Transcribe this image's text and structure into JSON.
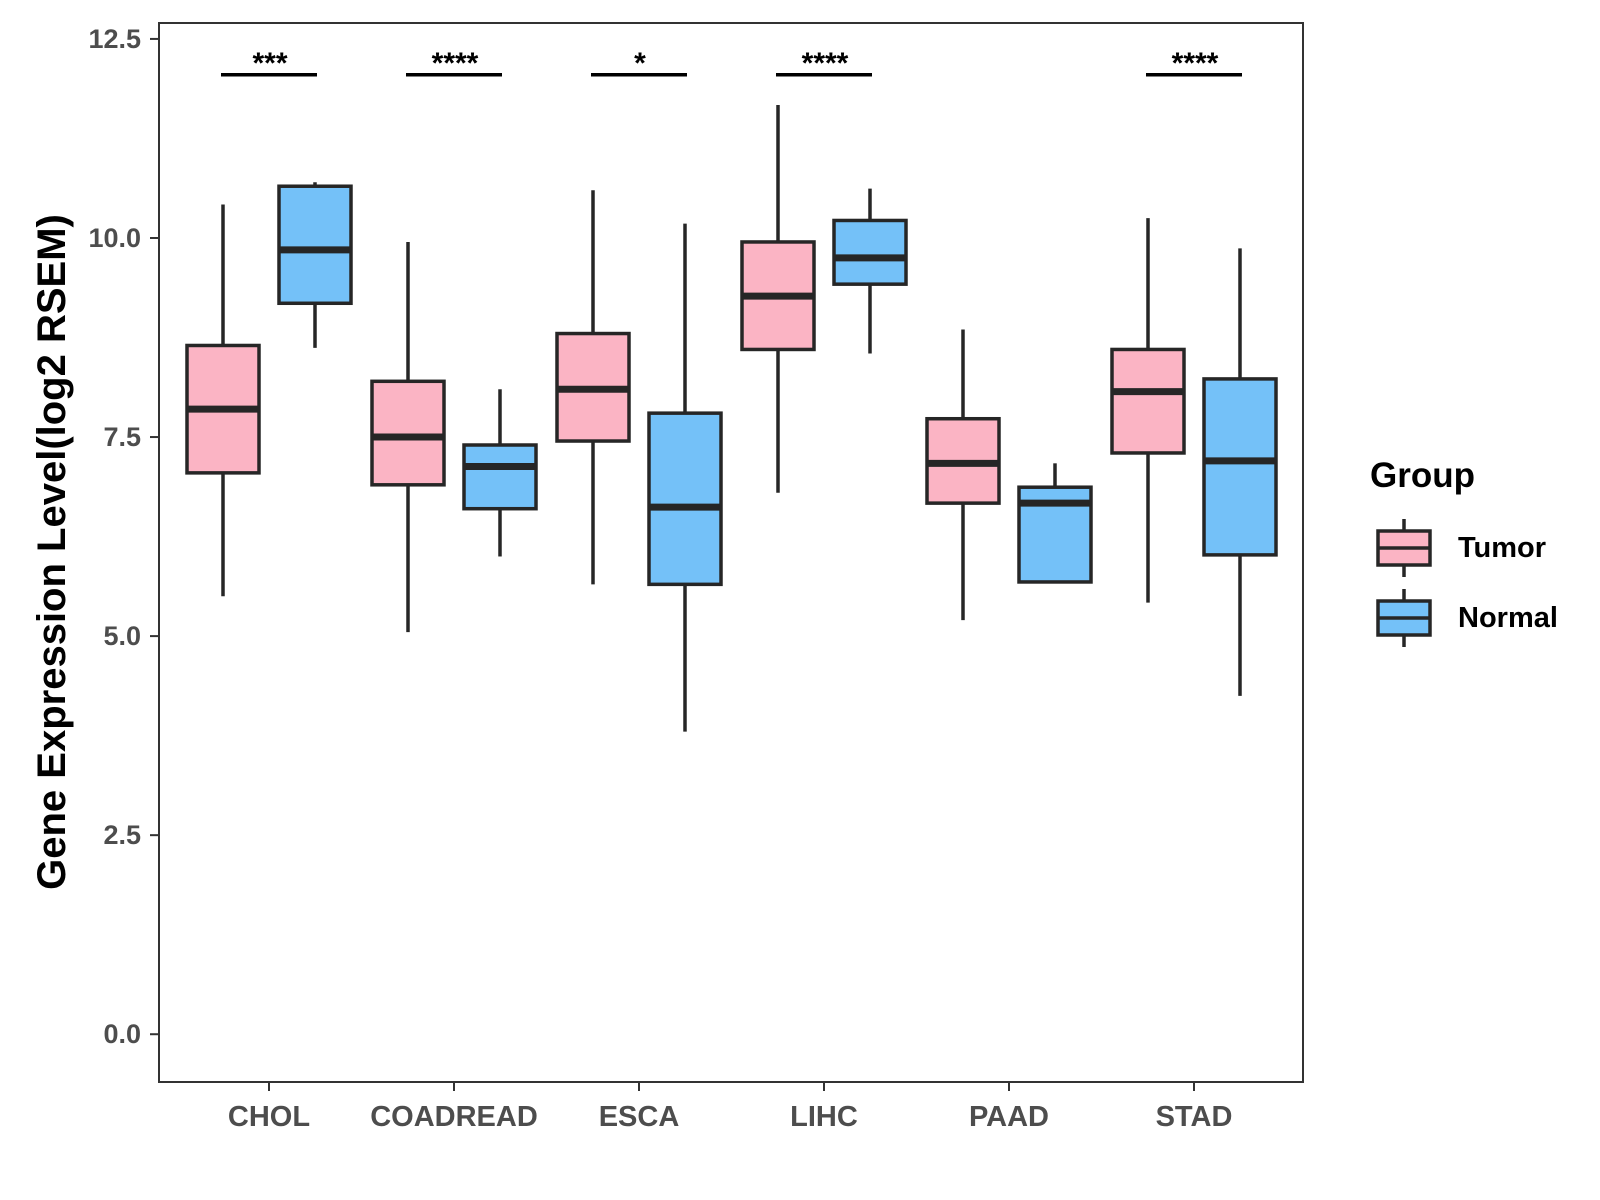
{
  "chart_data": {
    "type": "boxplot",
    "title": "",
    "xlabel": "",
    "ylabel": "Gene Expression Level(log2 RSEM)",
    "ylim": [
      -0.6,
      12.7
    ],
    "yticks": [
      "0.0",
      "2.5",
      "5.0",
      "7.5",
      "10.0",
      "12.5"
    ],
    "categories": [
      "CHOL",
      "COADREAD",
      "ESCA",
      "LIHC",
      "PAAD",
      "STAD"
    ],
    "legend": {
      "title": "Group",
      "position": "right",
      "entries": [
        "Tumor",
        "Normal"
      ]
    },
    "colors": {
      "Tumor": "#FBB4C4",
      "Normal": "#74C1F8",
      "outline": "#262626"
    },
    "series": [
      {
        "name": "Tumor",
        "boxes": [
          {
            "min": 5.5,
            "q1": 7.05,
            "median": 7.85,
            "q3": 8.65,
            "max": 10.42
          },
          {
            "min": 5.05,
            "q1": 6.9,
            "median": 7.5,
            "q3": 8.2,
            "max": 9.95
          },
          {
            "min": 5.65,
            "q1": 7.45,
            "median": 8.1,
            "q3": 8.8,
            "max": 10.6
          },
          {
            "min": 6.8,
            "q1": 8.6,
            "median": 9.27,
            "q3": 9.95,
            "max": 11.67
          },
          {
            "min": 5.2,
            "q1": 6.67,
            "median": 7.17,
            "q3": 7.73,
            "max": 8.85
          },
          {
            "min": 5.42,
            "q1": 7.3,
            "median": 8.07,
            "q3": 8.6,
            "max": 10.25
          }
        ]
      },
      {
        "name": "Normal",
        "boxes": [
          {
            "min": 8.62,
            "q1": 9.18,
            "median": 9.85,
            "q3": 10.65,
            "max": 10.7
          },
          {
            "min": 6.0,
            "q1": 6.6,
            "median": 7.13,
            "q3": 7.4,
            "max": 8.1
          },
          {
            "min": 3.8,
            "q1": 5.65,
            "median": 6.62,
            "q3": 7.8,
            "max": 10.18
          },
          {
            "min": 8.55,
            "q1": 9.42,
            "median": 9.75,
            "q3": 10.22,
            "max": 10.62
          },
          {
            "min": 5.68,
            "q1": 5.68,
            "median": 6.67,
            "q3": 6.87,
            "max": 7.17
          },
          {
            "min": 4.25,
            "q1": 6.02,
            "median": 7.2,
            "q3": 8.23,
            "max": 9.87
          }
        ]
      }
    ],
    "significance": [
      "***",
      "****",
      "*",
      "****",
      "",
      "****"
    ],
    "significance_y": 12.05
  }
}
